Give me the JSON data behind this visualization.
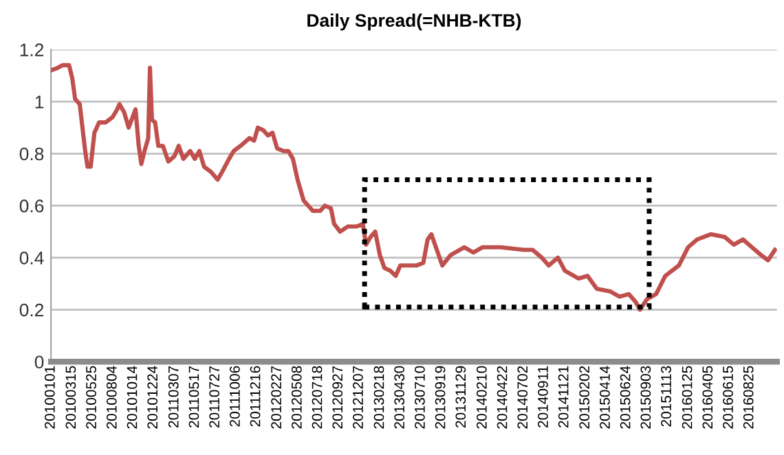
{
  "chart_data": {
    "type": "line",
    "title": "Daily Spread(=NHB-KTB)",
    "x": [
      "2010-01-01",
      "2010-01-25",
      "2010-02-10",
      "2010-03-05",
      "2010-03-16",
      "2010-03-26",
      "2010-04-11",
      "2010-04-30",
      "2010-05-08",
      "2010-05-19",
      "2010-06-01",
      "2010-06-17",
      "2010-07-10",
      "2010-08-03",
      "2010-08-19",
      "2010-08-27",
      "2010-09-12",
      "2010-09-28",
      "2010-10-22",
      "2010-11-02",
      "2010-11-11",
      "2010-11-22",
      "2010-12-05",
      "2010-12-11",
      "2010-12-18",
      "2010-12-29",
      "2011-01-09",
      "2011-01-25",
      "2011-02-13",
      "2011-03-06",
      "2011-03-21",
      "2011-04-06",
      "2011-04-30",
      "2011-05-16",
      "2011-06-01",
      "2011-06-17",
      "2011-07-11",
      "2011-08-03",
      "2011-08-19",
      "2011-09-12",
      "2011-09-28",
      "2011-10-22",
      "2011-11-22",
      "2011-12-08",
      "2011-12-21",
      "2012-01-09",
      "2012-01-25",
      "2012-02-10",
      "2012-02-26",
      "2012-03-20",
      "2012-04-05",
      "2012-04-21",
      "2012-05-07",
      "2012-05-28",
      "2012-06-13",
      "2012-06-29",
      "2012-07-25",
      "2012-08-10",
      "2012-08-31",
      "2012-09-11",
      "2012-10-02",
      "2012-10-29",
      "2012-11-29",
      "2012-12-20",
      "2012-12-31",
      "2013-01-16",
      "2013-02-01",
      "2013-02-17",
      "2013-03-05",
      "2013-03-25",
      "2013-04-13",
      "2013-04-29",
      "2013-05-23",
      "2013-06-24",
      "2013-07-18",
      "2013-08-02",
      "2013-08-15",
      "2013-09-03",
      "2013-09-22",
      "2013-10-21",
      "2013-12-07",
      "2014-01-08",
      "2014-02-09",
      "2014-04-13",
      "2014-07-02",
      "2014-08-02",
      "2014-09-03",
      "2014-09-27",
      "2014-10-29",
      "2014-11-22",
      "2015-01-08",
      "2015-02-09",
      "2015-03-13",
      "2015-04-29",
      "2015-05-31",
      "2015-07-02",
      "2015-07-26",
      "2015-08-10",
      "2015-09-03",
      "2015-10-05",
      "2015-11-06",
      "2015-12-23",
      "2016-01-24",
      "2016-02-25",
      "2016-04-12",
      "2016-05-30",
      "2016-07-01",
      "2016-08-02",
      "2016-09-02",
      "2016-10-04",
      "2016-10-28",
      "2016-11-21"
    ],
    "series": [
      {
        "color": "#c0504d",
        "values": [
          1.12,
          1.13,
          1.14,
          1.14,
          1.09,
          1.01,
          0.99,
          0.81,
          0.75,
          0.75,
          0.88,
          0.92,
          0.92,
          0.94,
          0.97,
          0.99,
          0.96,
          0.9,
          0.97,
          0.83,
          0.76,
          0.81,
          0.86,
          1.13,
          0.93,
          0.92,
          0.83,
          0.83,
          0.77,
          0.79,
          0.83,
          0.78,
          0.81,
          0.78,
          0.81,
          0.75,
          0.73,
          0.7,
          0.73,
          0.78,
          0.81,
          0.83,
          0.86,
          0.85,
          0.9,
          0.89,
          0.87,
          0.88,
          0.82,
          0.81,
          0.81,
          0.78,
          0.7,
          0.62,
          0.6,
          0.58,
          0.58,
          0.6,
          0.59,
          0.53,
          0.5,
          0.52,
          0.52,
          0.53,
          0.45,
          0.48,
          0.5,
          0.41,
          0.36,
          0.35,
          0.33,
          0.37,
          0.37,
          0.37,
          0.38,
          0.47,
          0.49,
          0.43,
          0.37,
          0.41,
          0.44,
          0.42,
          0.44,
          0.44,
          0.43,
          0.43,
          0.4,
          0.37,
          0.4,
          0.35,
          0.32,
          0.33,
          0.28,
          0.27,
          0.25,
          0.26,
          0.23,
          0.2,
          0.24,
          0.26,
          0.33,
          0.37,
          0.44,
          0.47,
          0.49,
          0.48,
          0.45,
          0.47,
          0.44,
          0.41,
          0.39,
          0.43
        ]
      }
    ],
    "line_style": "solid",
    "xlim": [
      "2010-01-01",
      "2016-11-28"
    ],
    "xticks": [
      {
        "value": "2010-01-01",
        "label": "20100101"
      },
      {
        "value": "2010-03-15",
        "label": "20100315"
      },
      {
        "value": "2010-05-25",
        "label": "20100525"
      },
      {
        "value": "2010-08-04",
        "label": "20100804"
      },
      {
        "value": "2010-10-14",
        "label": "20101014"
      },
      {
        "value": "2010-12-24",
        "label": "20101224"
      },
      {
        "value": "2011-03-07",
        "label": "20110307"
      },
      {
        "value": "2011-05-17",
        "label": "20110517"
      },
      {
        "value": "2011-07-27",
        "label": "20110727"
      },
      {
        "value": "2011-10-06",
        "label": "20111006"
      },
      {
        "value": "2011-12-16",
        "label": "20111216"
      },
      {
        "value": "2012-02-27",
        "label": "20120227"
      },
      {
        "value": "2012-05-08",
        "label": "20120508"
      },
      {
        "value": "2012-07-18",
        "label": "20120718"
      },
      {
        "value": "2012-09-27",
        "label": "20120927"
      },
      {
        "value": "2012-12-07",
        "label": "20121207"
      },
      {
        "value": "2013-02-18",
        "label": "20130218"
      },
      {
        "value": "2013-04-30",
        "label": "20130430"
      },
      {
        "value": "2013-07-10",
        "label": "20130710"
      },
      {
        "value": "2013-09-19",
        "label": "20130919"
      },
      {
        "value": "2013-11-29",
        "label": "20131129"
      },
      {
        "value": "2014-02-10",
        "label": "20140210"
      },
      {
        "value": "2014-04-22",
        "label": "20140422"
      },
      {
        "value": "2014-07-02",
        "label": "20140702"
      },
      {
        "value": "2014-09-11",
        "label": "20140911"
      },
      {
        "value": "2014-11-21",
        "label": "20141121"
      },
      {
        "value": "2015-02-02",
        "label": "20150202"
      },
      {
        "value": "2015-04-14",
        "label": "20150414"
      },
      {
        "value": "2015-06-24",
        "label": "20150624"
      },
      {
        "value": "2015-09-03",
        "label": "20150903"
      },
      {
        "value": "2015-11-13",
        "label": "20151113"
      },
      {
        "value": "2016-01-25",
        "label": "20160125"
      },
      {
        "value": "2016-04-05",
        "label": "20160405"
      },
      {
        "value": "2016-06-15",
        "label": "20160615"
      },
      {
        "value": "2016-08-25",
        "label": "20160825"
      }
    ],
    "ylim": [
      0,
      1.2
    ],
    "yticks": [
      0,
      0.2,
      0.4,
      0.6,
      0.8,
      1,
      1.2
    ],
    "grid": "y",
    "legend": false,
    "marker": "none"
  }
}
